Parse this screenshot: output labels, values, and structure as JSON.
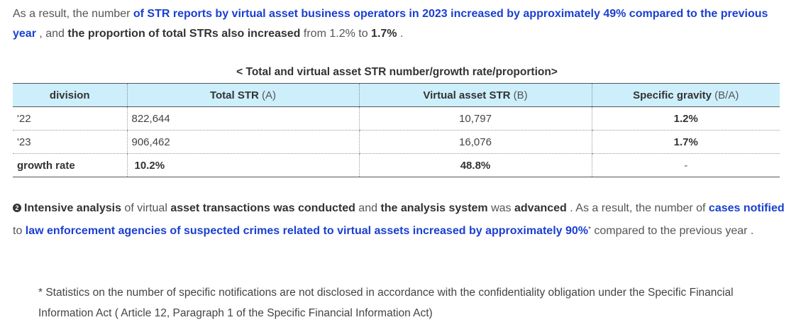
{
  "para1": {
    "t1": "As a result, the number ",
    "h1": "of STR reports by virtual asset business operators in 2023 increased by approximately 49% compared to the previous year",
    "t2": " , and ",
    "b1": "the proportion of total STRs also increased",
    "t3": " from 1.2% to ",
    "b2": "1.7%",
    "t4": " ."
  },
  "table": {
    "caption": "< Total and virtual asset STR number/growth rate/proportion>",
    "headers": [
      {
        "label": "division",
        "unit": ""
      },
      {
        "label": "Total STR",
        "unit": " (A)"
      },
      {
        "label": "Virtual asset STR",
        "unit": " (B)"
      },
      {
        "label": "Specific gravity",
        "unit": " (B/A)"
      }
    ],
    "rows": [
      {
        "division": "'22",
        "total": "822,644",
        "virtual": "10,797",
        "gravity": "1.2%"
      },
      {
        "division": "'23",
        "total": "906,462",
        "virtual": "16,076",
        "gravity": "1.7%"
      },
      {
        "division": "growth rate",
        "total": "10.2%",
        "virtual": "48.8%",
        "gravity": "-"
      }
    ]
  },
  "para2": {
    "bullet": "2",
    "b1": "Intensive analysis",
    "t1": " of virtual ",
    "b2": "asset transactions was conducted",
    "t2": " and ",
    "b3": "the analysis system",
    "t3": " was ",
    "b4": "advanced",
    "t4": " . As a result, the number of ",
    "h1": "cases notified",
    "t5": " to ",
    "h2": "law enforcement agencies of suspected crimes related to virtual assets increased by approximately 90%",
    "sup": "*",
    "t6": " compared to the previous year ."
  },
  "note": {
    "text": "* Statistics on the number of specific notifications are not disclosed in accordance with the confidentiality obligation under the Specific Financial Information Act ( Article 12, Paragraph 1 of the Specific Financial Information Act)"
  }
}
